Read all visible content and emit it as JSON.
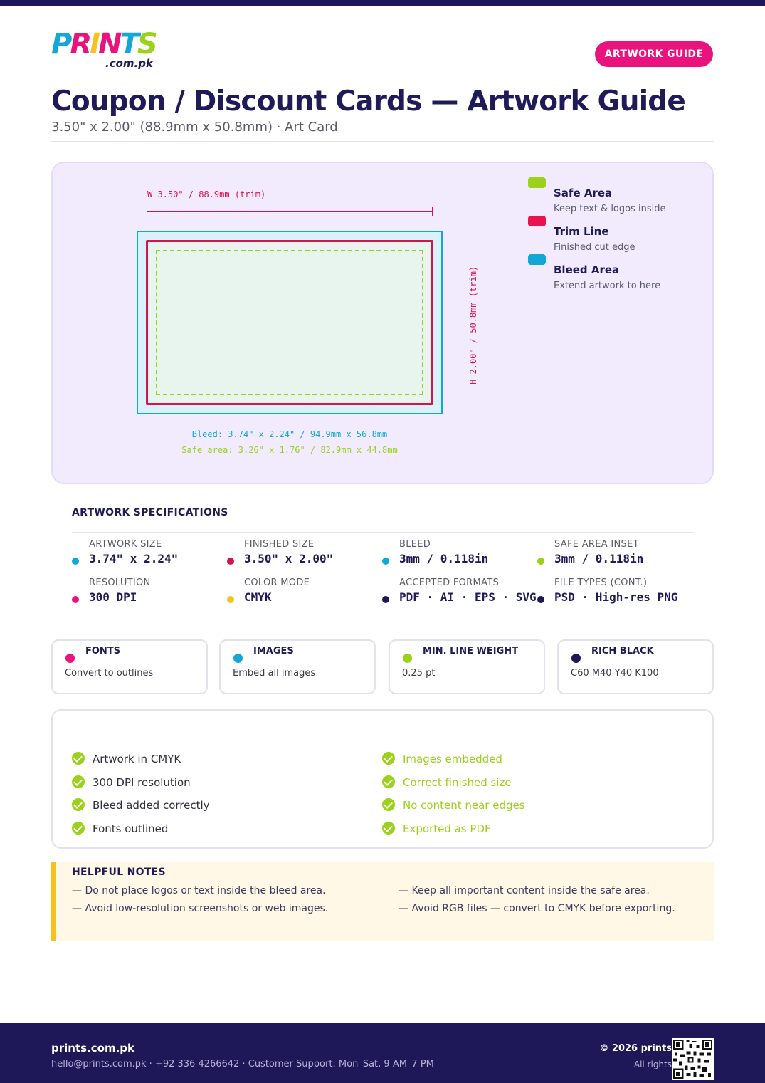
{
  "brand": {
    "logo_letters": [
      "P",
      "R",
      "I",
      "N",
      "T",
      "S"
    ],
    "logo_domain": ".com.pk",
    "colors": {
      "navy": "#1e1758",
      "pink": "#e8137c",
      "cyan": "#14a6d6",
      "yellow": "#f7c21c",
      "green": "#9bd11b",
      "red": "#d6134d"
    }
  },
  "header": {
    "badge": "ARTWORK GUIDE",
    "title": "Coupon / Discount Cards — Artwork Guide",
    "subtitle": "3.50\" x 2.00\" (88.9mm x 50.8mm) · Art Card"
  },
  "diagram": {
    "width_label": "W 3.50\" / 88.9mm (trim)",
    "height_label": "H 2.00\" / 50.8mm (trim)",
    "bleed_label": "Bleed: 3.74\" x 2.24\" / 94.9mm x 56.8mm",
    "safe_label": "Safe area: 3.26\" x 1.76\" / 82.9mm x 44.8mm",
    "legend": [
      {
        "title": "Safe Area",
        "desc": "Keep text & logos inside",
        "color": "#9bd11b"
      },
      {
        "title": "Trim Line",
        "desc": "Finished cut edge",
        "color": "#e8134d"
      },
      {
        "title": "Bleed Area",
        "desc": "Extend artwork to here",
        "color": "#14a6d6"
      }
    ]
  },
  "specs": {
    "heading": "ARTWORK SPECIFICATIONS",
    "items": [
      {
        "label": "ARTWORK SIZE",
        "value": "3.74\" x 2.24\"",
        "color": "#14a6d6"
      },
      {
        "label": "FINISHED SIZE",
        "value": "3.50\" x 2.00\"",
        "color": "#d6134d"
      },
      {
        "label": "BLEED",
        "value": "3mm / 0.118in",
        "color": "#14a6d6"
      },
      {
        "label": "SAFE AREA INSET",
        "value": "3mm / 0.118in",
        "color": "#9bd11b"
      },
      {
        "label": "RESOLUTION",
        "value": "300 DPI",
        "color": "#e8137c"
      },
      {
        "label": "COLOR MODE",
        "value": "CMYK",
        "color": "#f7c21c"
      },
      {
        "label": "ACCEPTED FORMATS",
        "value": "PDF · AI · EPS · SVG",
        "color": "#1e1758"
      },
      {
        "label": "FILE TYPES (CONT.)",
        "value": "PSD · High-res PNG",
        "color": "#1e1758"
      }
    ]
  },
  "cards": [
    {
      "title": "FONTS",
      "desc": "Convert to outlines",
      "color": "#e8137c"
    },
    {
      "title": "IMAGES",
      "desc": "Embed all images",
      "color": "#14a6d6"
    },
    {
      "title": "MIN. LINE WEIGHT",
      "desc": "0.25 pt",
      "color": "#9bd11b"
    },
    {
      "title": "RICH BLACK",
      "desc": "C60 M40 Y40 K100",
      "color": "#1e1758"
    }
  ],
  "checklist": {
    "left": [
      "Artwork in CMYK",
      "300 DPI resolution",
      "Bleed added correctly",
      "Fonts outlined"
    ],
    "right": [
      "Images embedded",
      "Correct finished size",
      "No content near edges",
      "Exported as PDF"
    ]
  },
  "notes": {
    "heading": "HELPFUL NOTES",
    "items": [
      "— Do not place logos or text inside the bleed area.",
      "— Keep all important content inside the safe area.",
      "— Avoid low-resolution screenshots or web images.",
      "— Avoid RGB files — convert to CMYK before exporting."
    ]
  },
  "footer": {
    "site": "prints.com.pk",
    "contact": "hello@prints.com.pk · +92 336 4266642 · Customer Support: Mon–Sat, 9 AM–7 PM",
    "copyright": "© 2026 prints",
    "rights": "All rights"
  }
}
